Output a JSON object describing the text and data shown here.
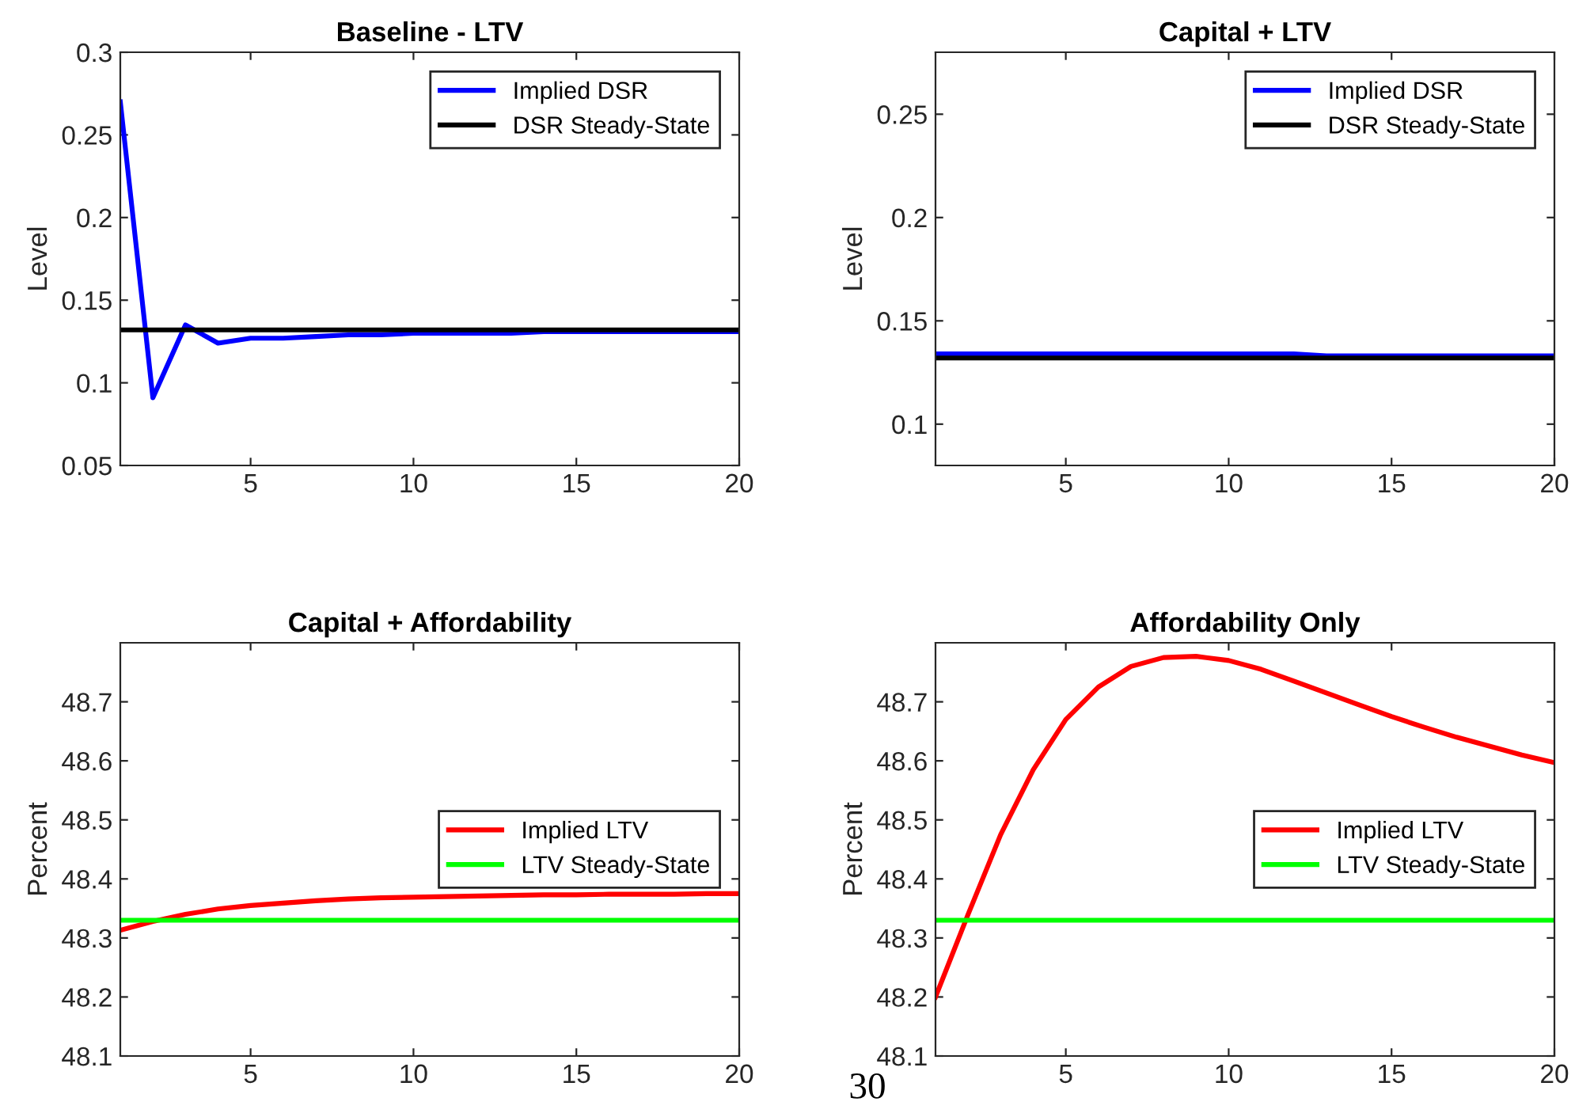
{
  "chart_data": [
    {
      "type": "line",
      "title": "Baseline - LTV",
      "ylabel": "Level",
      "x": [
        1,
        2,
        3,
        4,
        5,
        6,
        7,
        8,
        9,
        10,
        11,
        12,
        13,
        14,
        15,
        16,
        17,
        18,
        19,
        20
      ],
      "xlim": [
        1,
        20
      ],
      "xticks": [
        5,
        10,
        15,
        20
      ],
      "ylim": [
        0.05,
        0.3
      ],
      "yticks": [
        0.05,
        0.1,
        0.15,
        0.2,
        0.25,
        0.3
      ],
      "legend": "top right",
      "grid": false,
      "series": [
        {
          "name": "Implied DSR",
          "color": "#0000ff",
          "values": [
            0.27,
            0.091,
            0.135,
            0.124,
            0.127,
            0.127,
            0.128,
            0.129,
            0.129,
            0.13,
            0.13,
            0.13,
            0.13,
            0.131,
            0.131,
            0.131,
            0.131,
            0.131,
            0.131,
            0.131
          ]
        }
      ],
      "ref_lines": [
        {
          "axis": "y",
          "value": 0.132,
          "label": "DSR Steady-State",
          "color": "#000000"
        }
      ]
    },
    {
      "type": "line",
      "title": "Capital + LTV",
      "ylabel": "Level",
      "x": [
        1,
        2,
        3,
        4,
        5,
        6,
        7,
        8,
        9,
        10,
        11,
        12,
        13,
        14,
        15,
        16,
        17,
        18,
        19,
        20
      ],
      "xlim": [
        1,
        20
      ],
      "xticks": [
        5,
        10,
        15,
        20
      ],
      "ylim": [
        0.08,
        0.28
      ],
      "yticks": [
        0.1,
        0.15,
        0.2,
        0.25
      ],
      "legend": "top right",
      "grid": false,
      "series": [
        {
          "name": "Implied DSR",
          "color": "#0000ff",
          "values": [
            0.134,
            0.134,
            0.134,
            0.134,
            0.134,
            0.134,
            0.134,
            0.134,
            0.134,
            0.134,
            0.134,
            0.134,
            0.133,
            0.133,
            0.133,
            0.133,
            0.133,
            0.133,
            0.133,
            0.133
          ]
        }
      ],
      "ref_lines": [
        {
          "axis": "y",
          "value": 0.132,
          "label": "DSR Steady-State",
          "color": "#000000"
        }
      ]
    },
    {
      "type": "line",
      "title": "Capital + Affordability",
      "ylabel": "Percent",
      "x": [
        1,
        2,
        3,
        4,
        5,
        6,
        7,
        8,
        9,
        10,
        11,
        12,
        13,
        14,
        15,
        16,
        17,
        18,
        19,
        20
      ],
      "xlim": [
        1,
        20
      ],
      "xticks": [
        5,
        10,
        15,
        20
      ],
      "ylim": [
        48.1,
        48.8
      ],
      "yticks": [
        48.1,
        48.2,
        48.3,
        48.4,
        48.5,
        48.6,
        48.7
      ],
      "legend": "right",
      "grid": false,
      "series": [
        {
          "name": "Implied LTV",
          "color": "#ff0000",
          "values": [
            48.313,
            48.328,
            48.34,
            48.349,
            48.355,
            48.359,
            48.363,
            48.366,
            48.368,
            48.369,
            48.37,
            48.371,
            48.372,
            48.373,
            48.373,
            48.374,
            48.374,
            48.374,
            48.375,
            48.375
          ]
        }
      ],
      "ref_lines": [
        {
          "axis": "y",
          "value": 48.33,
          "label": "LTV Steady-State",
          "color": "#00ff00"
        }
      ]
    },
    {
      "type": "line",
      "title": "Affordability Only",
      "ylabel": "Percent",
      "x": [
        1,
        2,
        3,
        4,
        5,
        6,
        7,
        8,
        9,
        10,
        11,
        12,
        13,
        14,
        15,
        16,
        17,
        18,
        19,
        20
      ],
      "xlim": [
        1,
        20
      ],
      "xticks": [
        5,
        10,
        15,
        20
      ],
      "ylim": [
        48.1,
        48.8
      ],
      "yticks": [
        48.1,
        48.2,
        48.3,
        48.4,
        48.5,
        48.6,
        48.7
      ],
      "legend": "right",
      "grid": false,
      "annotations": [
        "30"
      ],
      "series": [
        {
          "name": "Implied LTV",
          "color": "#ff0000",
          "values": [
            48.2,
            48.34,
            48.475,
            48.585,
            48.67,
            48.725,
            48.76,
            48.775,
            48.777,
            48.77,
            48.755,
            48.735,
            48.715,
            48.695,
            48.675,
            48.657,
            48.64,
            48.625,
            48.61,
            48.597
          ]
        }
      ],
      "ref_lines": [
        {
          "axis": "y",
          "value": 48.33,
          "label": "LTV Steady-State",
          "color": "#00ff00"
        }
      ]
    }
  ]
}
